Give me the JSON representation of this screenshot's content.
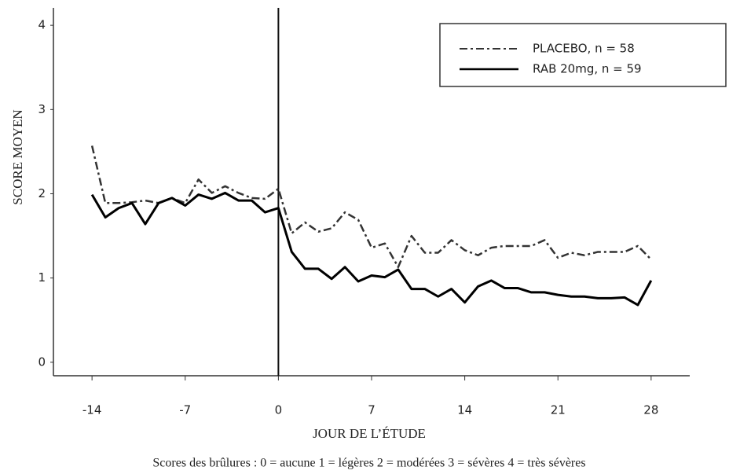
{
  "chart_data": {
    "type": "line",
    "y_label": "SCORE MOYEN",
    "x_label": "JOUR DE L’ÉTUDE",
    "footnote": "Scores des brûlures : 0 = aucune  1 = légères  2 = modérées  3 = sévères  4 = très sévères",
    "x": [
      -14,
      -13,
      -12,
      -11,
      -10,
      -9,
      -8,
      -7,
      -6,
      -5,
      -4,
      -3,
      -2,
      -1,
      0,
      1,
      2,
      3,
      4,
      5,
      6,
      7,
      8,
      9,
      10,
      11,
      12,
      13,
      14,
      15,
      16,
      17,
      18,
      19,
      20,
      21,
      22,
      23,
      24,
      25,
      26,
      27,
      28
    ],
    "series": [
      {
        "name": "PLACEBO, n = 58",
        "color": "#333333",
        "dash": "dashdot",
        "values": [
          2.57,
          1.89,
          1.89,
          1.9,
          1.92,
          1.89,
          1.95,
          1.89,
          2.17,
          2.01,
          2.09,
          2.01,
          1.95,
          1.94,
          2.06,
          1.53,
          1.66,
          1.55,
          1.59,
          1.78,
          1.69,
          1.36,
          1.41,
          1.13,
          1.5,
          1.3,
          1.3,
          1.45,
          1.33,
          1.27,
          1.36,
          1.38,
          1.38,
          1.38,
          1.45,
          1.24,
          1.3,
          1.27,
          1.31,
          1.31,
          1.31,
          1.38,
          1.22
        ]
      },
      {
        "name": "RAB 20mg, n = 59",
        "color": "#000000",
        "dash": "solid",
        "values": [
          1.99,
          1.72,
          1.83,
          1.89,
          1.64,
          1.89,
          1.95,
          1.86,
          1.99,
          1.94,
          2.01,
          1.92,
          1.92,
          1.78,
          1.83,
          1.31,
          1.11,
          1.11,
          0.99,
          1.13,
          0.96,
          1.03,
          1.01,
          1.1,
          0.87,
          0.87,
          0.78,
          0.87,
          0.71,
          0.9,
          0.97,
          0.88,
          0.88,
          0.83,
          0.83,
          0.8,
          0.78,
          0.78,
          0.76,
          0.76,
          0.77,
          0.68,
          0.97
        ]
      }
    ],
    "xlim": [
      -16.9,
      30.9
    ],
    "xticks": [
      -14,
      -7,
      0,
      7,
      14,
      21,
      28
    ],
    "ylim": [
      -0.16,
      4.3
    ],
    "yticks": [
      0,
      1,
      2,
      3,
      4
    ],
    "vline": 0,
    "legend": "upper right"
  }
}
